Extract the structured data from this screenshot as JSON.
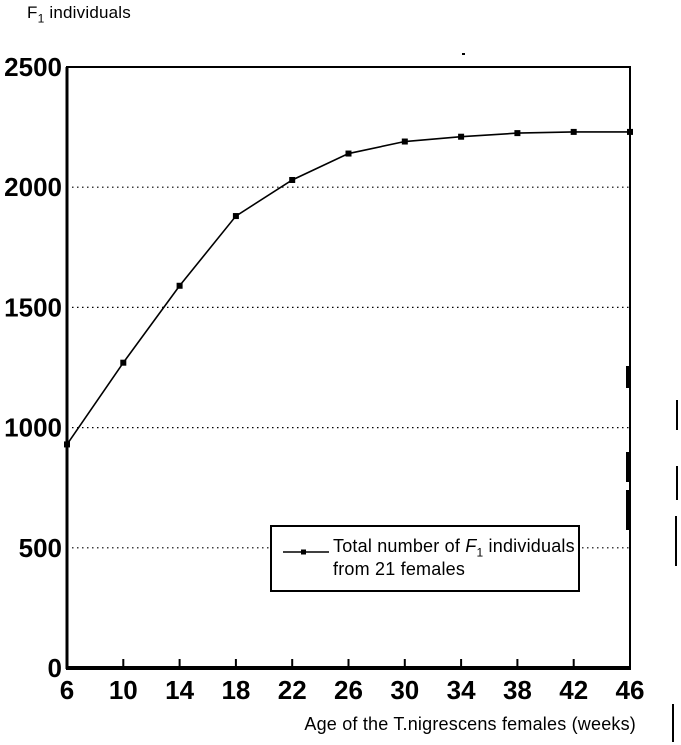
{
  "title": {
    "prefix": "F",
    "sub": "1",
    "rest": " individuals"
  },
  "chart_data": {
    "type": "line",
    "title": "F1 individuals",
    "xlabel": "Age of the T.nigrescens females (weeks)",
    "ylabel": "F1 individuals",
    "x": [
      6,
      10,
      14,
      18,
      22,
      26,
      30,
      34,
      38,
      42,
      46
    ],
    "series": [
      {
        "name": "Total number of F1 individuals from 21 females",
        "values": [
          930,
          1270,
          1590,
          1880,
          2030,
          2140,
          2190,
          2210,
          2225,
          2230,
          2230
        ],
        "marker": "square",
        "color": "#000000"
      }
    ],
    "xlim": [
      6,
      46
    ],
    "ylim": [
      0,
      2500
    ],
    "x_ticks": [
      6,
      10,
      14,
      18,
      22,
      26,
      30,
      34,
      38,
      42,
      46
    ],
    "y_ticks": [
      0,
      500,
      1000,
      1500,
      2000,
      2500
    ],
    "grid": "horizontal-dotted",
    "legend_position": "inside-lower-center"
  },
  "legend": {
    "line1_prefix": "Total number of ",
    "line1_f": "F",
    "line1_sub": "1",
    "line1_rest": " individuals",
    "line2": "from 21 females"
  }
}
